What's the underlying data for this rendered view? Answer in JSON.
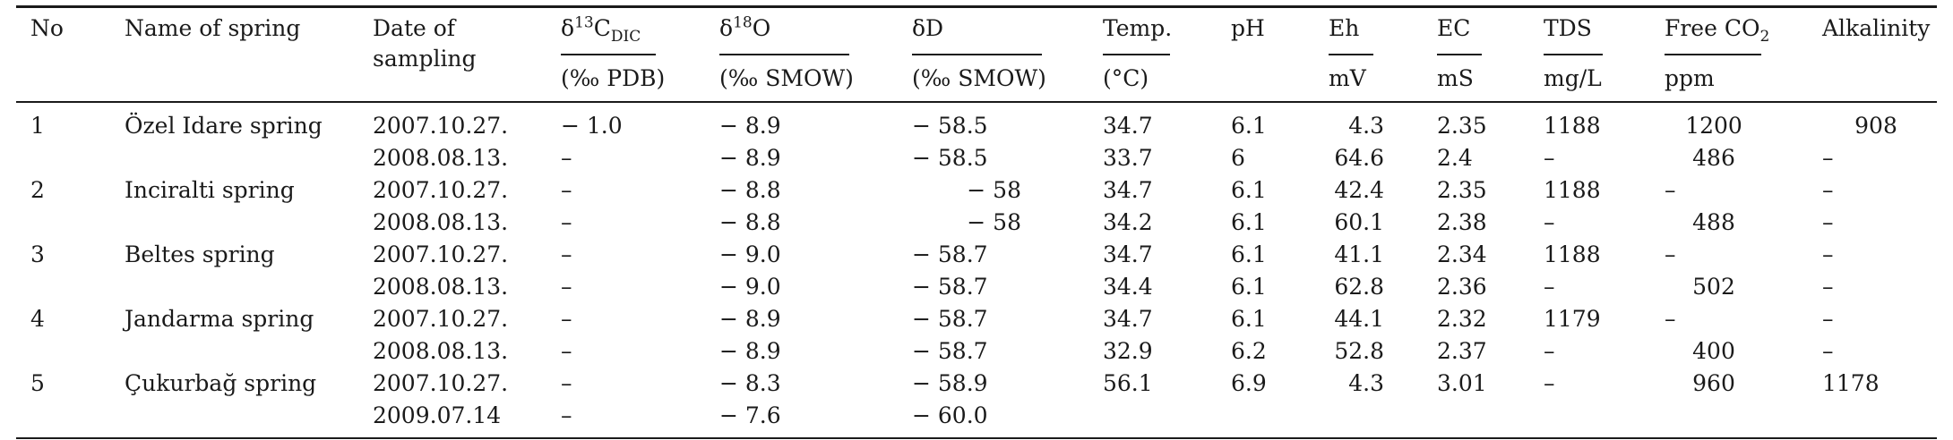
{
  "table": {
    "header": {
      "no": "No",
      "name": "Name of spring",
      "date_line1": "Date of",
      "date_line2": "sampling",
      "d13c_prefix": "δ",
      "d13c_sup": "13",
      "d13c_main": "C",
      "d13c_sub": "DIC",
      "d13c_unit": "(‰ PDB)",
      "d18o_prefix": "δ",
      "d18o_sup": "18",
      "d18o_main": "O",
      "d18o_unit": "(‰ SMOW)",
      "dd": "δD",
      "dd_unit": "(‰ SMOW)",
      "temp": "Temp.",
      "temp_unit": "(°C)",
      "ph": "pH",
      "eh": "Eh",
      "eh_unit": "mV",
      "ec": "EC",
      "ec_unit": "mS",
      "tds": "TDS",
      "tds_unit": "mg/L",
      "co2_main": "Free CO",
      "co2_sub": "2",
      "co2_unit": "ppm",
      "alk": "Alkalinity"
    },
    "rows": [
      {
        "no": "1",
        "name": "Özel Idare spring",
        "date": "2007.10.27.",
        "d13c": "− 1.0",
        "d18o": "− 8.9",
        "dd": "− 58.5",
        "temp": "34.7",
        "ph": "6.1",
        "eh": "4.3",
        "ec": "2.35",
        "tds": "1188",
        "co2": "1200",
        "alk": "908"
      },
      {
        "no": "",
        "name": "",
        "date": "2008.08.13.",
        "d13c": "–",
        "d18o": "− 8.9",
        "dd": "− 58.5",
        "temp": "33.7",
        "ph": "6",
        "eh": "64.6",
        "ec": "2.4",
        "tds": "–",
        "co2": "486",
        "alk": "–"
      },
      {
        "no": "2",
        "name": "Inciralti spring",
        "date": "2007.10.27.",
        "d13c": "–",
        "d18o": "− 8.8",
        "dd": "− 58",
        "temp": "34.7",
        "ph": "6.1",
        "eh": "42.4",
        "ec": "2.35",
        "tds": "1188",
        "co2": "–",
        "alk": "–"
      },
      {
        "no": "",
        "name": "",
        "date": "2008.08.13.",
        "d13c": "–",
        "d18o": "− 8.8",
        "dd": "− 58",
        "temp": "34.2",
        "ph": "6.1",
        "eh": "60.1",
        "ec": "2.38",
        "tds": "–",
        "co2": "488",
        "alk": "–"
      },
      {
        "no": "3",
        "name": "Beltes spring",
        "date": "2007.10.27.",
        "d13c": "–",
        "d18o": "− 9.0",
        "dd": "− 58.7",
        "temp": "34.7",
        "ph": "6.1",
        "eh": "41.1",
        "ec": "2.34",
        "tds": "1188",
        "co2": "–",
        "alk": "–"
      },
      {
        "no": "",
        "name": "",
        "date": "2008.08.13.",
        "d13c": "–",
        "d18o": "− 9.0",
        "dd": "− 58.7",
        "temp": "34.4",
        "ph": "6.1",
        "eh": "62.8",
        "ec": "2.36",
        "tds": "–",
        "co2": "502",
        "alk": "–"
      },
      {
        "no": "4",
        "name": "Jandarma spring",
        "date": "2007.10.27.",
        "d13c": "–",
        "d18o": "− 8.9",
        "dd": "− 58.7",
        "temp": "34.7",
        "ph": "6.1",
        "eh": "44.1",
        "ec": "2.32",
        "tds": "1179",
        "co2": "–",
        "alk": "–"
      },
      {
        "no": "",
        "name": "",
        "date": "2008.08.13.",
        "d13c": "–",
        "d18o": "− 8.9",
        "dd": "− 58.7",
        "temp": "32.9",
        "ph": "6.2",
        "eh": "52.8",
        "ec": "2.37",
        "tds": "–",
        "co2": "400",
        "alk": "–"
      },
      {
        "no": "5",
        "name": "Çukurbağ spring",
        "date": "2007.10.27.",
        "d13c": "–",
        "d18o": "− 8.3",
        "dd": "− 58.9",
        "temp": "56.1",
        "ph": "6.9",
        "eh": "4.3",
        "ec": "3.01",
        "tds": "–",
        "co2": "960",
        "alk": "1178"
      },
      {
        "no": "",
        "name": "",
        "date": "2009.07.14",
        "d13c": "–",
        "d18o": "− 7.6",
        "dd": "− 60.0",
        "temp": "",
        "ph": "",
        "eh": "",
        "ec": "",
        "tds": "",
        "co2": "",
        "alk": ""
      }
    ]
  }
}
